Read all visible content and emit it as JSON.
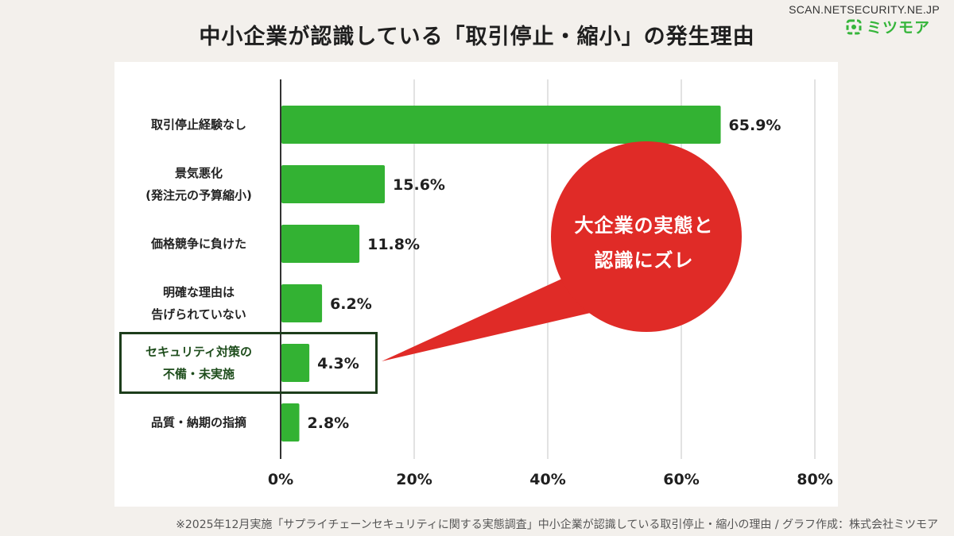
{
  "header": {
    "title": "中小企業が認識している「取引停止・縮小」の発生理由",
    "watermark": "SCAN.NETSECURITY.NE.JP",
    "logo_text": "ミツモア"
  },
  "chart_data": {
    "type": "bar",
    "orientation": "horizontal",
    "title": "中小企業が認識している「取引停止・縮小」の発生理由",
    "categories": [
      [
        "取引停止経験なし"
      ],
      [
        "景気悪化",
        "(発注元の予算縮小)"
      ],
      [
        "価格競争に負けた"
      ],
      [
        "明確な理由は",
        "告げられていない"
      ],
      [
        "セキュリティ対策の",
        "不備・未実施"
      ],
      [
        "品質・納期の指摘"
      ]
    ],
    "values": [
      65.9,
      15.6,
      11.8,
      6.2,
      4.3,
      2.8
    ],
    "value_labels": [
      "65.9%",
      "15.6%",
      "11.8%",
      "6.2%",
      "4.3%",
      "2.8%"
    ],
    "xlim": [
      0,
      80
    ],
    "ticks": [
      0,
      20,
      40,
      60,
      80
    ],
    "tick_labels": [
      "0%",
      "20%",
      "40%",
      "60%",
      "80%"
    ],
    "grid": true,
    "bar_color": "#33b233",
    "highlighted_category_index": 4
  },
  "callout": {
    "lines": [
      "大企業の実態と",
      "認識にズレ"
    ],
    "color": "#e02b27"
  },
  "footnote": "※2025年12月実施「サプライチェーンセキュリティに関する実態調査」中小企業が認識している取引停止・縮小の理由 / グラフ作成：株式会社ミツモア",
  "colors": {
    "background": "#f3f0ec",
    "panel": "#ffffff",
    "accent_green": "#35b53a",
    "highlight_border": "#1d3d1b"
  }
}
